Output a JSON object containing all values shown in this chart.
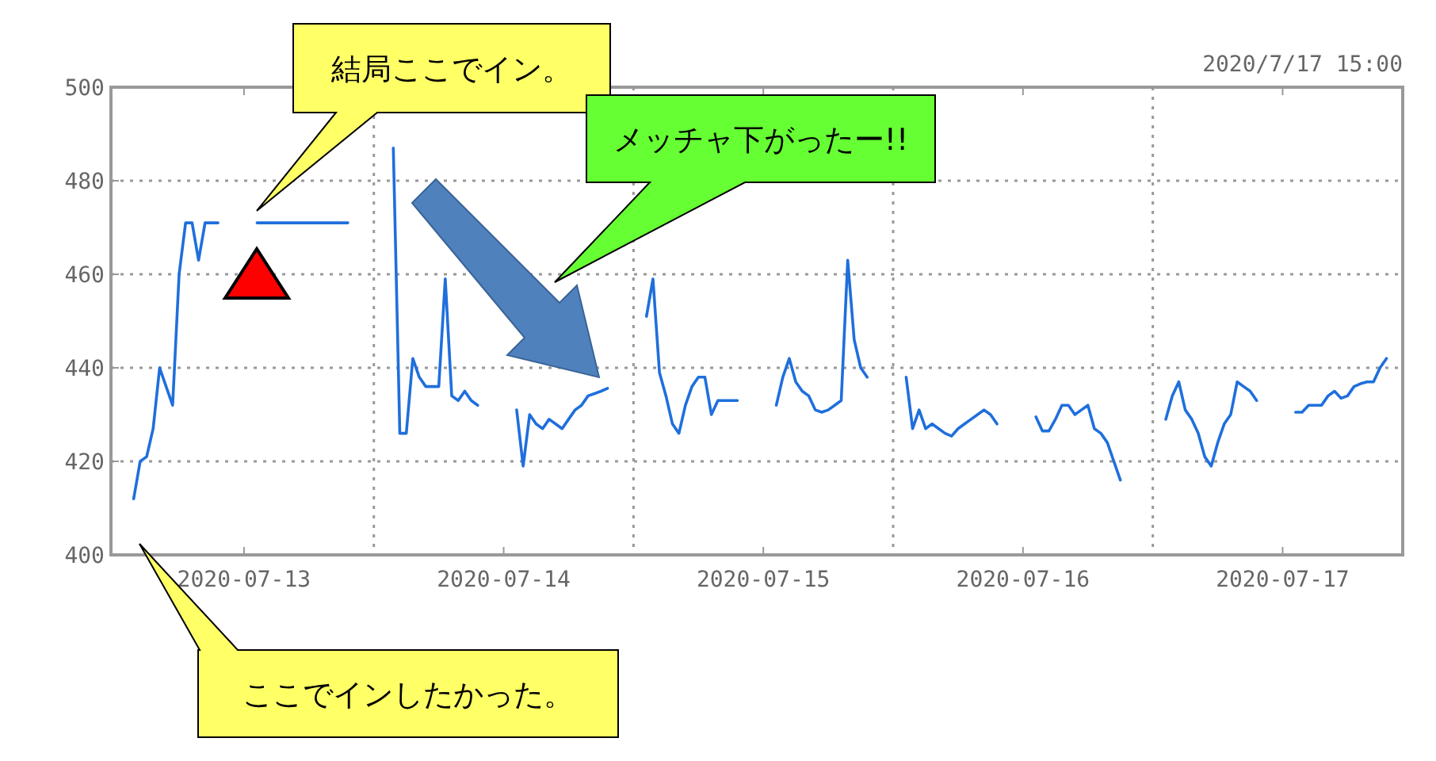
{
  "chart_data": {
    "type": "line",
    "categories": [
      null,
      null,
      null,
      null,
      null,
      null,
      null,
      null,
      null,
      null,
      null,
      null,
      null,
      null,
      null,
      null,
      null,
      null,
      null,
      null,
      "2020-07-13",
      null,
      null,
      null,
      null,
      null,
      null,
      null,
      null,
      null,
      null,
      null,
      null,
      null,
      null,
      null,
      null,
      null,
      null,
      null,
      null,
      null,
      null,
      null,
      null,
      null,
      null,
      null,
      null,
      null,
      null,
      null,
      null,
      null,
      null,
      null,
      null,
      null,
      null,
      null,
      "2020-07-14",
      null,
      null,
      null,
      null,
      null,
      null,
      null,
      null,
      null,
      null,
      null,
      null,
      null,
      null,
      null,
      null,
      null,
      null,
      null,
      null,
      null,
      null,
      null,
      null,
      null,
      null,
      null,
      null,
      null,
      null,
      null,
      null,
      null,
      null,
      null,
      null,
      null,
      null,
      null,
      "2020-07-15",
      null,
      null,
      null,
      null,
      null,
      null,
      null,
      null,
      null,
      null,
      null,
      null,
      null,
      null,
      null,
      null,
      null,
      null,
      null,
      null,
      null,
      null,
      null,
      null,
      null,
      null,
      null,
      null,
      null,
      null,
      null,
      null,
      null,
      null,
      null,
      null,
      null,
      null,
      null,
      "2020-07-16",
      null,
      null,
      null,
      null,
      null,
      null,
      null,
      null,
      null,
      null,
      null,
      null,
      null,
      null,
      null,
      null,
      null,
      null,
      null,
      null,
      null,
      null,
      null,
      null,
      null,
      null,
      null,
      null,
      null,
      null,
      null,
      null,
      null,
      null,
      null,
      null,
      null,
      null,
      null,
      "2020-07-17",
      null,
      null,
      null,
      null,
      null,
      null,
      null,
      null,
      null,
      null,
      null,
      null,
      null,
      null,
      null,
      null,
      null,
      null
    ],
    "ylim": [
      400,
      500
    ],
    "yticks": [
      400,
      420,
      440,
      460,
      480,
      500
    ],
    "grid": true,
    "line_style": "solid",
    "series": [
      {
        "color": "#1f6fdc",
        "values": [
          null,
          null,
          null,
          412,
          420,
          421,
          427,
          440,
          436,
          432,
          460,
          471,
          471,
          463,
          471,
          471,
          471,
          null,
          null,
          null,
          null,
          null,
          471,
          471,
          471,
          471,
          471,
          471,
          471,
          471,
          471,
          471,
          471,
          471,
          471,
          471,
          471,
          null,
          null,
          null,
          null,
          null,
          null,
          487,
          426,
          426,
          442,
          438,
          436,
          436,
          436,
          459,
          434,
          433,
          435,
          433,
          432,
          null,
          null,
          null,
          null,
          null,
          431,
          419,
          430,
          428,
          427,
          429,
          428,
          427,
          429,
          431,
          432,
          434,
          434.5,
          435,
          435.6,
          null,
          null,
          null,
          null,
          null,
          451,
          459,
          439,
          434,
          428,
          426,
          432,
          436,
          438,
          438,
          430,
          433,
          433,
          433,
          433,
          null,
          null,
          null,
          null,
          null,
          432,
          438,
          442,
          437,
          435,
          434,
          431,
          430.5,
          431,
          432,
          433,
          463,
          446,
          440,
          438,
          null,
          null,
          null,
          null,
          null,
          438,
          427,
          431,
          427,
          428,
          427,
          426,
          425.4,
          427,
          428,
          429,
          430,
          431,
          430,
          428,
          null,
          null,
          null,
          null,
          null,
          429.5,
          426.5,
          426.5,
          429,
          432,
          432,
          430,
          431,
          432,
          427,
          426,
          424,
          420,
          416,
          null,
          null,
          null,
          null,
          null,
          null,
          429,
          434,
          437,
          431,
          429,
          426,
          421,
          419,
          424,
          428,
          430,
          437,
          436,
          435,
          433,
          null,
          null,
          null,
          null,
          null,
          430.5,
          430.5,
          432,
          432,
          432,
          434,
          435,
          433.5,
          434,
          436,
          436.6,
          437,
          437,
          440,
          442,
          null,
          null
        ]
      }
    ],
    "annotations": [
      "2020/7/17 15:00",
      "結局ここでイン。",
      "メッチャ下がったー!!",
      "ここでインしたかった。"
    ]
  }
}
